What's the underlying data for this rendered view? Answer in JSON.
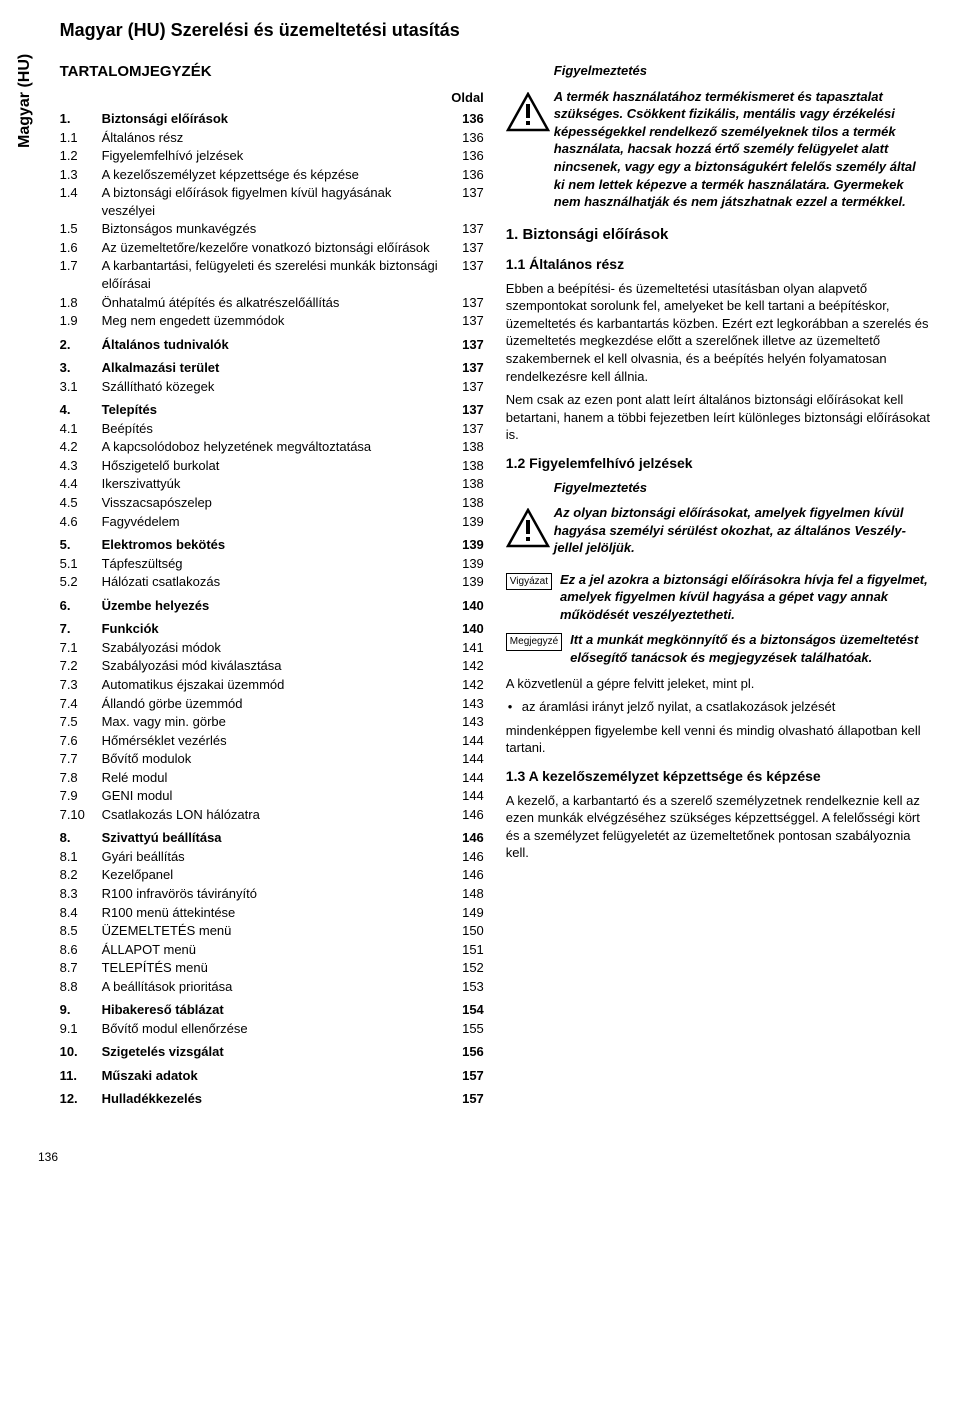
{
  "sideTab": "Magyar (HU)",
  "title": "Magyar (HU) Szerelési és üzemeltetési utasítás",
  "tocHeading": "TARTALOMJEGYZÉK",
  "oldal": "Oldal",
  "toc": [
    {
      "n": "1.",
      "t": "Biztonsági előírások",
      "p": "136",
      "b": true,
      "gap": false
    },
    {
      "n": "1.1",
      "t": "Általános rész",
      "p": "136",
      "b": false
    },
    {
      "n": "1.2",
      "t": "Figyelemfelhívó jelzések",
      "p": "136",
      "b": false
    },
    {
      "n": "1.3",
      "t": "A kezelőszemélyzet képzettsége és képzése",
      "p": "136",
      "b": false
    },
    {
      "n": "1.4",
      "t": "A biztonsági előírások figyelmen kívül hagyásának veszélyei",
      "p": "137",
      "b": false
    },
    {
      "n": "1.5",
      "t": "Biztonságos munkavégzés",
      "p": "137",
      "b": false
    },
    {
      "n": "1.6",
      "t": "Az üzemeltetőre/kezelőre vonatkozó biztonsági előírások",
      "p": "137",
      "b": false
    },
    {
      "n": "1.7",
      "t": "A karbantartási, felügyeleti és szerelési munkák biztonsági előírásai",
      "p": "137",
      "b": false
    },
    {
      "n": "1.8",
      "t": "Önhatalmú átépítés és alkatrészelőállítás",
      "p": "137",
      "b": false
    },
    {
      "n": "1.9",
      "t": "Meg nem engedett üzemmódok",
      "p": "137",
      "b": false
    },
    {
      "n": "2.",
      "t": "Általános tudnivalók",
      "p": "137",
      "b": true,
      "gap": true
    },
    {
      "n": "3.",
      "t": "Alkalmazási terület",
      "p": "137",
      "b": true,
      "gap": true
    },
    {
      "n": "3.1",
      "t": "Szállítható közegek",
      "p": "137",
      "b": false
    },
    {
      "n": "4.",
      "t": "Telepítés",
      "p": "137",
      "b": true,
      "gap": true
    },
    {
      "n": "4.1",
      "t": "Beépítés",
      "p": "137",
      "b": false
    },
    {
      "n": "4.2",
      "t": "A kapcsolódoboz helyzetének megváltoztatása",
      "p": "138",
      "b": false
    },
    {
      "n": "4.3",
      "t": "Hőszigetelő burkolat",
      "p": "138",
      "b": false
    },
    {
      "n": "4.4",
      "t": "Ikerszivattyúk",
      "p": "138",
      "b": false
    },
    {
      "n": "4.5",
      "t": "Visszacsapószelep",
      "p": "138",
      "b": false
    },
    {
      "n": "4.6",
      "t": "Fagyvédelem",
      "p": "139",
      "b": false
    },
    {
      "n": "5.",
      "t": "Elektromos bekötés",
      "p": "139",
      "b": true,
      "gap": true
    },
    {
      "n": "5.1",
      "t": "Tápfeszültség",
      "p": "139",
      "b": false
    },
    {
      "n": "5.2",
      "t": "Hálózati csatlakozás",
      "p": "139",
      "b": false
    },
    {
      "n": "6.",
      "t": "Üzembe helyezés",
      "p": "140",
      "b": true,
      "gap": true
    },
    {
      "n": "7.",
      "t": "Funkciók",
      "p": "140",
      "b": true,
      "gap": true
    },
    {
      "n": "7.1",
      "t": "Szabályozási módok",
      "p": "141",
      "b": false
    },
    {
      "n": "7.2",
      "t": "Szabályozási mód kiválasztása",
      "p": "142",
      "b": false
    },
    {
      "n": "7.3",
      "t": "Automatikus éjszakai üzemmód",
      "p": "142",
      "b": false
    },
    {
      "n": "7.4",
      "t": "Állandó görbe üzemmód",
      "p": "143",
      "b": false
    },
    {
      "n": "7.5",
      "t": "Max. vagy min. görbe",
      "p": "143",
      "b": false
    },
    {
      "n": "7.6",
      "t": "Hőmérséklet vezérlés",
      "p": "144",
      "b": false
    },
    {
      "n": "7.7",
      "t": "Bővítő modulok",
      "p": "144",
      "b": false
    },
    {
      "n": "7.8",
      "t": "Relé modul",
      "p": "144",
      "b": false
    },
    {
      "n": "7.9",
      "t": "GENI modul",
      "p": "144",
      "b": false
    },
    {
      "n": "7.10",
      "t": "Csatlakozás LON hálózatra",
      "p": "146",
      "b": false
    },
    {
      "n": "8.",
      "t": "Szivattyú beállítása",
      "p": "146",
      "b": true,
      "gap": true
    },
    {
      "n": "8.1",
      "t": "Gyári beállítás",
      "p": "146",
      "b": false
    },
    {
      "n": "8.2",
      "t": "Kezelőpanel",
      "p": "146",
      "b": false
    },
    {
      "n": "8.3",
      "t": "R100 infravörös távirányító",
      "p": "148",
      "b": false
    },
    {
      "n": "8.4",
      "t": "R100 menü áttekintése",
      "p": "149",
      "b": false
    },
    {
      "n": "8.5",
      "t": "ÜZEMELTETÉS menü",
      "p": "150",
      "b": false
    },
    {
      "n": "8.6",
      "t": "ÁLLAPOT menü",
      "p": "151",
      "b": false
    },
    {
      "n": "8.7",
      "t": "TELEPÍTÉS menü",
      "p": "152",
      "b": false
    },
    {
      "n": "8.8",
      "t": "A beállítások prioritása",
      "p": "153",
      "b": false
    },
    {
      "n": "9.",
      "t": "Hibakereső táblázat",
      "p": "154",
      "b": true,
      "gap": true
    },
    {
      "n": "9.1",
      "t": "Bővítő modul ellenőrzése",
      "p": "155",
      "b": false
    },
    {
      "n": "10.",
      "t": "Szigetelés vizsgálat",
      "p": "156",
      "b": true,
      "gap": true
    },
    {
      "n": "11.",
      "t": "Műszaki adatok",
      "p": "157",
      "b": true,
      "gap": true
    },
    {
      "n": "12.",
      "t": "Hulladékkezelés",
      "p": "157",
      "b": true,
      "gap": true
    }
  ],
  "warn1": {
    "title": "Figyelmeztetés",
    "body": "A termék használatához termékismeret és tapasztalat szükséges. Csökkent fizikális, mentális vagy érzékelési képességekkel rendelkező személyeknek tilos a termék használata, hacsak hozzá értő személy felügyelet alatt nincsenek, vagy egy a biztonságukért felelős személy által ki nem lettek képezve a termék használatára. Gyermekek nem használhatják és nem játszhatnak ezzel a termékkel."
  },
  "sec1": {
    "h2": "1. Biztonsági előírások",
    "h3_1": "1.1 Általános rész",
    "p1": "Ebben a beépítési- és üzemeltetési utasításban olyan alapvető szempontokat sorolunk fel, amelyeket be kell tartani a beépítéskor, üzemeltetés és karbantartás közben. Ezért ezt legkorábban a szerelés és üzemeltetés megkezdése előtt a szerelőnek illetve az üzemeltető szakembernek el kell olvasnia, és a beépítés helyén folyamatosan rendelkezésre kell állnia.",
    "p2": "Nem csak az ezen pont alatt leírt általános biztonsági előírásokat kell betartani, hanem a többi fejezetben leírt különleges biztonsági előírásokat is.",
    "h3_2": "1.2 Figyelemfelhívó jelzések"
  },
  "warn2": {
    "title": "Figyelmeztetés",
    "body": "Az olyan biztonsági előírásokat, amelyek figyelmen kívül hagyása személyi sérülést okozhat, az általános Veszély-jellel jelöljük."
  },
  "noteA": {
    "label": "Vigyázat",
    "body": "Ez a jel azokra a biztonsági előírásokra hívja fel a figyelmet, amelyek figyelmen kívül hagyása a gépet vagy annak működését veszélyeztetheti."
  },
  "noteB": {
    "label": "Megjegyzé",
    "body": "Itt a munkát megkönnyítő és a biztonságos üzemeltetést elősegítő tanácsok és megjegyzések találhatóak."
  },
  "p_after_notes_1": "A közvetlenül a gépre felvitt jeleket, mint pl.",
  "bullet1": "az áramlási irányt jelző nyilat, a csatlakozások jelzését",
  "p_after_notes_2": "mindenképpen figyelembe kell venni és mindig olvasható állapotban kell tartani.",
  "sec13": {
    "h3": "1.3 A kezelőszemélyzet képzettsége és képzése",
    "p": "A kezelő, a karbantartó és a szerelő személyzetnek rendelkeznie kell az ezen munkák elvégzéséhez szükséges képzettséggel. A felelősségi kört és a személyzet felügyeletét az üzemeltetőnek pontosan szabályoznia kell."
  },
  "pageNumber": "136"
}
